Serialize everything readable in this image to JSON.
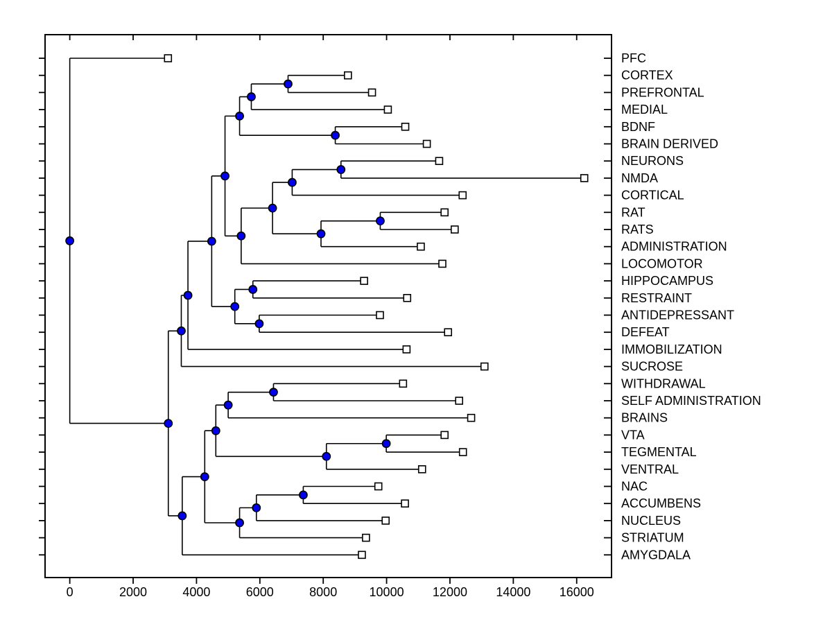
{
  "figure": {
    "background": "#ffffff",
    "title": ""
  },
  "chart_data": {
    "type": "dendrogram",
    "orientation": "root-left-leaves-right",
    "title": "",
    "xlabel": "",
    "ylabel": "",
    "grid": false,
    "legend": null,
    "xlim": [
      -780,
      17100
    ],
    "x_ticks": [
      0,
      2000,
      4000,
      6000,
      8000,
      10000,
      12000,
      14000,
      16000
    ],
    "x_tick_labels": [
      "0",
      "2000",
      "4000",
      "6000",
      "8000",
      "10000",
      "12000",
      "14000",
      "16000"
    ],
    "leaves": [
      {
        "id": "L0",
        "label": "PFC",
        "value": 3100
      },
      {
        "id": "L1",
        "label": "CORTEX",
        "value": 8780
      },
      {
        "id": "L2",
        "label": "PREFRONTAL",
        "value": 9540
      },
      {
        "id": "L3",
        "label": "MEDIAL",
        "value": 10040
      },
      {
        "id": "L4",
        "label": "BDNF",
        "value": 10590
      },
      {
        "id": "L5",
        "label": "BRAIN DERIVED",
        "value": 11270
      },
      {
        "id": "L6",
        "label": "NEURONS",
        "value": 11660
      },
      {
        "id": "L7",
        "label": "NMDA",
        "value": 16240
      },
      {
        "id": "L8",
        "label": "CORTICAL",
        "value": 12400
      },
      {
        "id": "L9",
        "label": "RAT",
        "value": 11830
      },
      {
        "id": "L10",
        "label": "RATS",
        "value": 12150
      },
      {
        "id": "L11",
        "label": "ADMINISTRATION",
        "value": 11080
      },
      {
        "id": "L12",
        "label": "LOCOMOTOR",
        "value": 11760
      },
      {
        "id": "L13",
        "label": "HIPPOCAMPUS",
        "value": 9290
      },
      {
        "id": "L14",
        "label": "RESTRAINT",
        "value": 10650
      },
      {
        "id": "L15",
        "label": "ANTIDEPRESSANT",
        "value": 9790
      },
      {
        "id": "L16",
        "label": "DEFEAT",
        "value": 11940
      },
      {
        "id": "L17",
        "label": "IMMOBILIZATION",
        "value": 10630
      },
      {
        "id": "L18",
        "label": "SUCROSE",
        "value": 13090
      },
      {
        "id": "L19",
        "label": "WITHDRAWAL",
        "value": 10520
      },
      {
        "id": "L20",
        "label": "SELF ADMINISTRATION",
        "value": 12290
      },
      {
        "id": "L21",
        "label": "BRAINS",
        "value": 12670
      },
      {
        "id": "L22",
        "label": "VTA",
        "value": 11830
      },
      {
        "id": "L23",
        "label": "TEGMENTAL",
        "value": 12410
      },
      {
        "id": "L24",
        "label": "VENTRAL",
        "value": 11120
      },
      {
        "id": "L25",
        "label": "NAC",
        "value": 9740
      },
      {
        "id": "L26",
        "label": "ACCUMBENS",
        "value": 10580
      },
      {
        "id": "L27",
        "label": "NUCLEUS",
        "value": 9970
      },
      {
        "id": "L28",
        "label": "STRIATUM",
        "value": 9350
      },
      {
        "id": "L29",
        "label": "AMYGDALA",
        "value": 9220
      }
    ],
    "internal_nodes": [
      {
        "id": "N0",
        "children": [
          "L1",
          "L2"
        ],
        "value": 6890
      },
      {
        "id": "N1",
        "children": [
          "N0",
          "L3"
        ],
        "value": 5730
      },
      {
        "id": "N2",
        "children": [
          "L4",
          "L5"
        ],
        "value": 8380
      },
      {
        "id": "N3",
        "children": [
          "N1",
          "N2"
        ],
        "value": 5360
      },
      {
        "id": "N4",
        "children": [
          "L6",
          "L7"
        ],
        "value": 8560
      },
      {
        "id": "N5",
        "children": [
          "N4",
          "L8"
        ],
        "value": 7020
      },
      {
        "id": "N6",
        "children": [
          "L9",
          "L10"
        ],
        "value": 9800
      },
      {
        "id": "N7",
        "children": [
          "N6",
          "L11"
        ],
        "value": 7930
      },
      {
        "id": "N8",
        "children": [
          "N5",
          "N7"
        ],
        "value": 6400
      },
      {
        "id": "N9",
        "children": [
          "N8",
          "L12"
        ],
        "value": 5410
      },
      {
        "id": "N10",
        "children": [
          "N3",
          "N9"
        ],
        "value": 4900
      },
      {
        "id": "N11",
        "children": [
          "L13",
          "L14"
        ],
        "value": 5780
      },
      {
        "id": "N12",
        "children": [
          "L15",
          "L16"
        ],
        "value": 5980
      },
      {
        "id": "N13",
        "children": [
          "N11",
          "N12"
        ],
        "value": 5210
      },
      {
        "id": "N14",
        "children": [
          "N10",
          "N13"
        ],
        "value": 4480
      },
      {
        "id": "N15",
        "children": [
          "N14",
          "L17"
        ],
        "value": 3730
      },
      {
        "id": "N16",
        "children": [
          "N15",
          "L18"
        ],
        "value": 3520
      },
      {
        "id": "N17",
        "children": [
          "L19",
          "L20"
        ],
        "value": 6430
      },
      {
        "id": "N18",
        "children": [
          "N17",
          "L21"
        ],
        "value": 5000
      },
      {
        "id": "N19",
        "children": [
          "L22",
          "L23"
        ],
        "value": 9990
      },
      {
        "id": "N20",
        "children": [
          "N19",
          "L24"
        ],
        "value": 8100
      },
      {
        "id": "N21",
        "children": [
          "N18",
          "N20"
        ],
        "value": 4610
      },
      {
        "id": "N22",
        "children": [
          "L25",
          "L26"
        ],
        "value": 7370
      },
      {
        "id": "N23",
        "children": [
          "N22",
          "L27"
        ],
        "value": 5890
      },
      {
        "id": "N24",
        "children": [
          "N23",
          "L28"
        ],
        "value": 5360
      },
      {
        "id": "N25",
        "children": [
          "N21",
          "N24"
        ],
        "value": 4260
      },
      {
        "id": "N26",
        "children": [
          "N25",
          "L29"
        ],
        "value": 3550
      },
      {
        "id": "N27",
        "children": [
          "N16",
          "N26"
        ],
        "value": 3110
      },
      {
        "id": "N28",
        "children": [
          "L0",
          "N27"
        ],
        "value": 0,
        "root": true
      }
    ],
    "style": {
      "branch_color": "#000000",
      "internal_node_marker": "blue-circle",
      "internal_node_fill": "#0000EE",
      "leaf_marker": "white-square",
      "leaf_marker_fill": "#ffffff",
      "marker_edge_color": "#000000",
      "tick_label_color": "#000000",
      "background": "#ffffff"
    }
  }
}
